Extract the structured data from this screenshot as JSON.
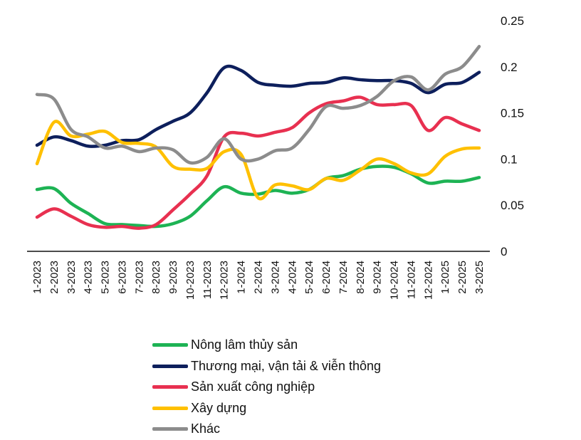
{
  "chart_data": {
    "type": "line",
    "title": "",
    "xlabel": "",
    "ylabel": "",
    "ylim": [
      0,
      0.25
    ],
    "y_ticks": [
      "0",
      "0.05",
      "0.1",
      "0.15",
      "0.2",
      "0.25"
    ],
    "y_axis_side": "right",
    "grid": false,
    "legend_position": "bottom",
    "categories": [
      "1-2023",
      "2-2023",
      "3-2023",
      "4-2023",
      "5-2023",
      "6-2023",
      "7-2023",
      "8-2023",
      "9-2023",
      "10-2023",
      "11-2023",
      "12-2023",
      "1-2024",
      "2-2024",
      "3-2024",
      "4-2024",
      "5-2024",
      "6-2024",
      "7-2024",
      "8-2024",
      "9-2024",
      "10-2024",
      "11-2024",
      "12-2024",
      "1-2025",
      "2-2025",
      "3-2025"
    ],
    "series": [
      {
        "name": "Nông lâm thủy sản",
        "color": "#1db354",
        "values": [
          0.067,
          0.068,
          0.052,
          0.041,
          0.03,
          0.029,
          0.028,
          0.027,
          0.03,
          0.038,
          0.055,
          0.07,
          0.063,
          0.062,
          0.066,
          0.063,
          0.067,
          0.079,
          0.082,
          0.089,
          0.092,
          0.091,
          0.084,
          0.074,
          0.076,
          0.076,
          0.08
        ]
      },
      {
        "name": "Thương mại, vận tải & viễn thông",
        "color": "#0d1f5c",
        "values": [
          0.115,
          0.124,
          0.12,
          0.114,
          0.115,
          0.12,
          0.121,
          0.132,
          0.141,
          0.15,
          0.172,
          0.199,
          0.196,
          0.183,
          0.18,
          0.179,
          0.182,
          0.183,
          0.188,
          0.186,
          0.185,
          0.185,
          0.182,
          0.172,
          0.181,
          0.183,
          0.194
        ]
      },
      {
        "name": "Sản xuất công nghiệp",
        "color": "#e83050",
        "values": [
          0.037,
          0.046,
          0.038,
          0.029,
          0.026,
          0.027,
          0.025,
          0.029,
          0.045,
          0.062,
          0.082,
          0.124,
          0.128,
          0.125,
          0.129,
          0.134,
          0.15,
          0.16,
          0.163,
          0.167,
          0.159,
          0.159,
          0.158,
          0.131,
          0.145,
          0.138,
          0.131
        ]
      },
      {
        "name": "Xây dựng",
        "color": "#ffc000",
        "values": [
          0.095,
          0.14,
          0.125,
          0.127,
          0.13,
          0.118,
          0.117,
          0.113,
          0.092,
          0.089,
          0.09,
          0.108,
          0.105,
          0.058,
          0.072,
          0.071,
          0.067,
          0.079,
          0.077,
          0.088,
          0.1,
          0.095,
          0.085,
          0.084,
          0.103,
          0.111,
          0.112
        ]
      },
      {
        "name": "Khác",
        "color": "#8c8c8c",
        "values": [
          0.17,
          0.165,
          0.132,
          0.124,
          0.112,
          0.114,
          0.108,
          0.112,
          0.11,
          0.096,
          0.102,
          0.122,
          0.1,
          0.1,
          0.109,
          0.112,
          0.132,
          0.157,
          0.155,
          0.158,
          0.168,
          0.185,
          0.189,
          0.175,
          0.192,
          0.2,
          0.222
        ]
      }
    ]
  }
}
